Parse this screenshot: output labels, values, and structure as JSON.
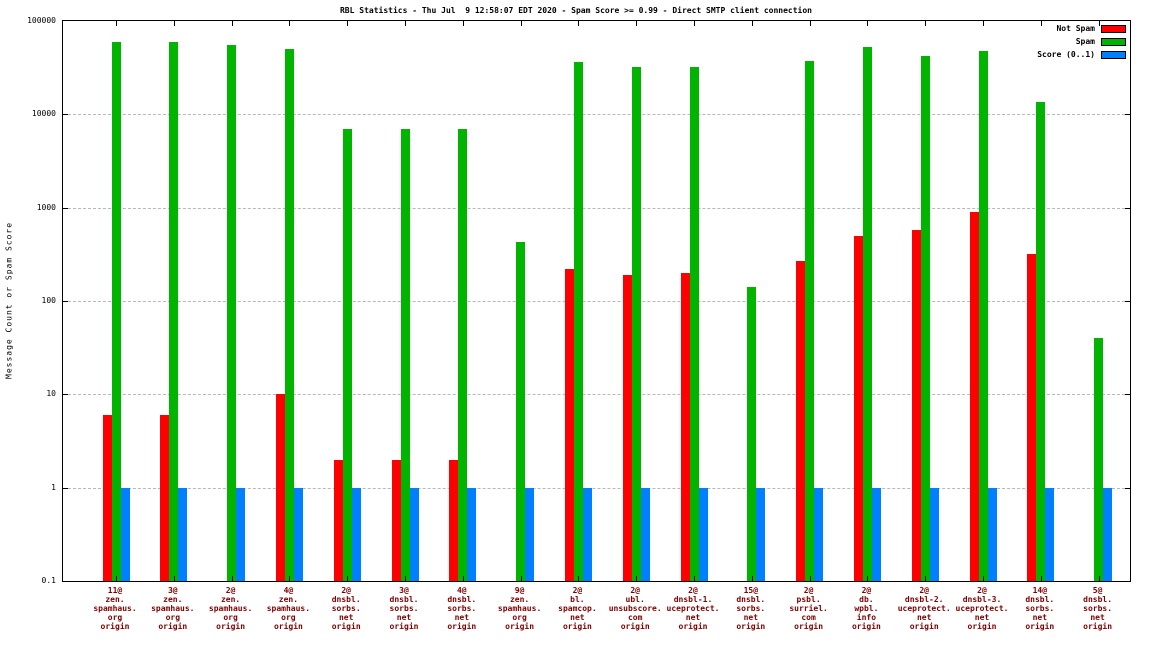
{
  "chart": {
    "title": "RBL Statistics - Thu Jul  9 12:58:07 EDT 2020 - Spam Score >= 0.99 - Direct SMTP client connection",
    "ylabel": "Message Count or Spam Score"
  },
  "chart_data": {
    "type": "bar",
    "scale": "log",
    "grid": true,
    "legend_position": "top-right",
    "ylim": [
      0.1,
      100000
    ],
    "yticks": [
      100000,
      10000,
      1000,
      100,
      10,
      1,
      0.1
    ],
    "ytick_labels": [
      "100000",
      "10000",
      "1000",
      "100",
      "10",
      "1",
      "0.1"
    ],
    "categories": [
      [
        "11@",
        "zen.",
        "spamhaus.",
        "org",
        "origin"
      ],
      [
        "3@",
        "zen.",
        "spamhaus.",
        "org",
        "origin"
      ],
      [
        "2@",
        "zen.",
        "spamhaus.",
        "org",
        "origin"
      ],
      [
        "4@",
        "zen.",
        "spamhaus.",
        "org",
        "origin"
      ],
      [
        "2@",
        "dnsbl.",
        "sorbs.",
        "net",
        "origin"
      ],
      [
        "3@",
        "dnsbl.",
        "sorbs.",
        "net",
        "origin"
      ],
      [
        "4@",
        "dnsbl.",
        "sorbs.",
        "net",
        "origin"
      ],
      [
        "9@",
        "zen.",
        "spamhaus.",
        "org",
        "origin"
      ],
      [
        "2@",
        "bl.",
        "spamcop.",
        "net",
        "origin"
      ],
      [
        "2@",
        "ubl.",
        "unsubscore.",
        "com",
        "origin"
      ],
      [
        "2@",
        "dnsbl-1.",
        "uceprotect.",
        "net",
        "origin"
      ],
      [
        "15@",
        "dnsbl.",
        "sorbs.",
        "net",
        "origin"
      ],
      [
        "2@",
        "psbl.",
        "surriel.",
        "com",
        "origin"
      ],
      [
        "2@",
        "db.",
        "wpbl.",
        "info",
        "origin"
      ],
      [
        "2@",
        "dnsbl-2.",
        "uceprotect.",
        "net",
        "origin"
      ],
      [
        "2@",
        "dnsbl-3.",
        "uceprotect.",
        "net",
        "origin"
      ],
      [
        "14@",
        "dnsbl.",
        "sorbs.",
        "net",
        "origin"
      ],
      [
        "5@",
        "dnsbl.",
        "sorbs.",
        "net",
        "origin"
      ]
    ],
    "series": [
      {
        "name": "Not Spam",
        "color": "#ff0000",
        "values": [
          6,
          6,
          null,
          10,
          2,
          2,
          2,
          null,
          220,
          190,
          200,
          null,
          270,
          500,
          580,
          900,
          320,
          null
        ]
      },
      {
        "name": "Spam",
        "color": "#00b400",
        "values": [
          60000,
          60000,
          55000,
          50000,
          7000,
          7000,
          7000,
          430,
          36000,
          32000,
          32000,
          140,
          37000,
          53000,
          42000,
          48000,
          13500,
          40
        ]
      },
      {
        "name": "Score (0..1)",
        "color": "#0080ff",
        "values": [
          1,
          1,
          1,
          1,
          1,
          1,
          1,
          1,
          1,
          1,
          1,
          1,
          1,
          1,
          1,
          1,
          1,
          1
        ]
      }
    ]
  }
}
